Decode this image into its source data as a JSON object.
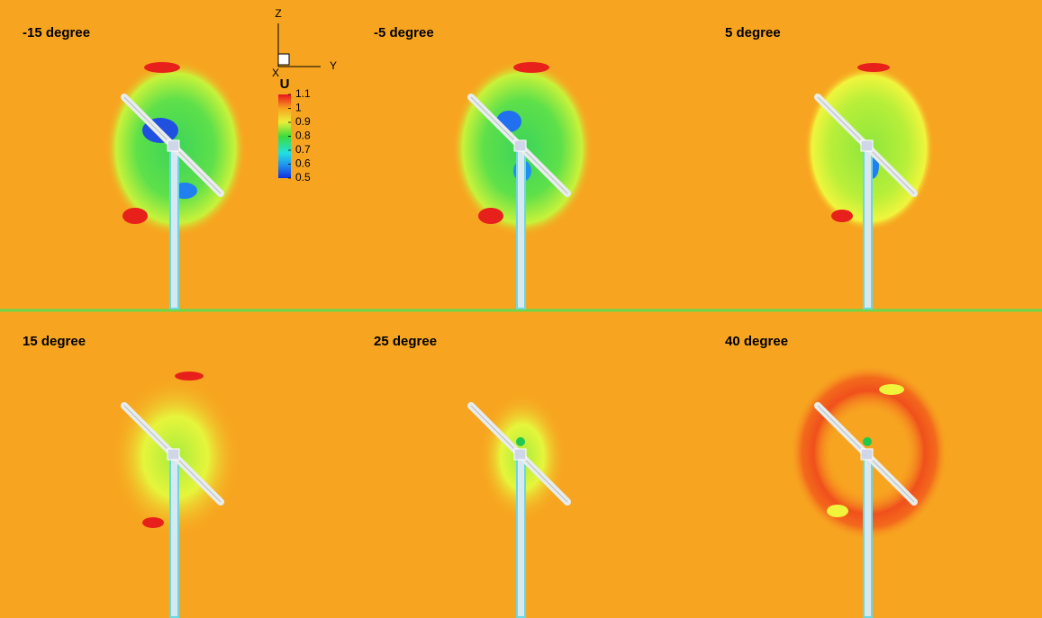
{
  "panels": [
    {
      "label": "-15 degree"
    },
    {
      "label": "-5 degree"
    },
    {
      "label": "5 degree"
    },
    {
      "label": "15 degree"
    },
    {
      "label": "25 degree"
    },
    {
      "label": "40 degree"
    }
  ],
  "axes_triad": {
    "vertical": "Z",
    "horizontal": "Y",
    "normal": "X"
  },
  "colorbar": {
    "title": "U",
    "lim": [
      0.5,
      1.1
    ],
    "ticks": [
      1.1,
      1,
      0.9,
      0.8,
      0.7,
      0.6,
      0.5
    ]
  }
}
